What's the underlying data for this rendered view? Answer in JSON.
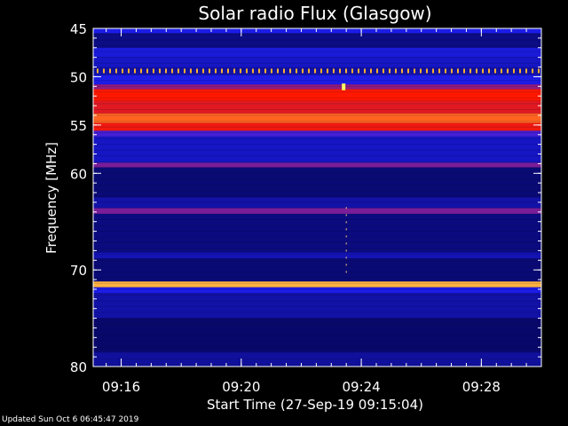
{
  "chart_data": {
    "type": "heatmap",
    "title": "Solar radio Flux (Glasgow)",
    "xlabel": "Start Time (27-Sep-19 09:15:04)",
    "ylabel": "Frequency [MHz]",
    "xticks": [
      "09:16",
      "09:20",
      "09:24",
      "09:28"
    ],
    "xtick_minutes": [
      16,
      20,
      24,
      28
    ],
    "xlim_minutes": [
      15.067,
      30.0
    ],
    "yticks": [
      45,
      50,
      55,
      60,
      70,
      80
    ],
    "ylim": [
      45,
      80
    ],
    "colormap": "blue-red-yellow",
    "bands": [
      {
        "from": 45.0,
        "to": 45.5,
        "level": 0.35
      },
      {
        "from": 45.5,
        "to": 47.0,
        "level": 0.15
      },
      {
        "from": 47.0,
        "to": 48.0,
        "level": 0.32
      },
      {
        "from": 48.0,
        "to": 49.0,
        "level": 0.28
      },
      {
        "from": 49.0,
        "to": 49.8,
        "level": 0.22
      },
      {
        "from": 49.8,
        "to": 50.8,
        "level": 0.35
      },
      {
        "from": 50.8,
        "to": 51.3,
        "level": 0.55
      },
      {
        "from": 51.3,
        "to": 52.5,
        "level": 0.7
      },
      {
        "from": 52.5,
        "to": 53.8,
        "level": 0.66
      },
      {
        "from": 53.8,
        "to": 54.8,
        "level": 0.8
      },
      {
        "from": 54.8,
        "to": 55.6,
        "level": 0.68
      },
      {
        "from": 55.6,
        "to": 56.2,
        "level": 0.45
      },
      {
        "from": 56.2,
        "to": 58.9,
        "level": 0.28
      },
      {
        "from": 58.9,
        "to": 59.4,
        "level": 0.52
      },
      {
        "from": 59.4,
        "to": 62.5,
        "level": 0.12
      },
      {
        "from": 62.5,
        "to": 63.6,
        "level": 0.22
      },
      {
        "from": 63.6,
        "to": 64.2,
        "level": 0.52
      },
      {
        "from": 64.2,
        "to": 68.2,
        "level": 0.14
      },
      {
        "from": 68.2,
        "to": 68.8,
        "level": 0.25
      },
      {
        "from": 68.8,
        "to": 71.2,
        "level": 0.12
      },
      {
        "from": 71.2,
        "to": 71.8,
        "level": 0.9
      },
      {
        "from": 71.8,
        "to": 72.4,
        "level": 0.35
      },
      {
        "from": 72.4,
        "to": 75.0,
        "level": 0.22
      },
      {
        "from": 75.0,
        "to": 78.5,
        "level": 0.1
      },
      {
        "from": 78.5,
        "to": 80.0,
        "level": 0.2
      }
    ],
    "stripe_freq": 49.4,
    "burst_time_minutes": 23.5
  },
  "colors": {
    "background": "#000000",
    "axis": "#ffffff",
    "low": "#00003a",
    "mid": "#2020ff",
    "high": "#ff1800",
    "peak": "#ffff60"
  },
  "footer": {
    "updated": "Updated Sun Oct  6 06:45:47 2019"
  }
}
